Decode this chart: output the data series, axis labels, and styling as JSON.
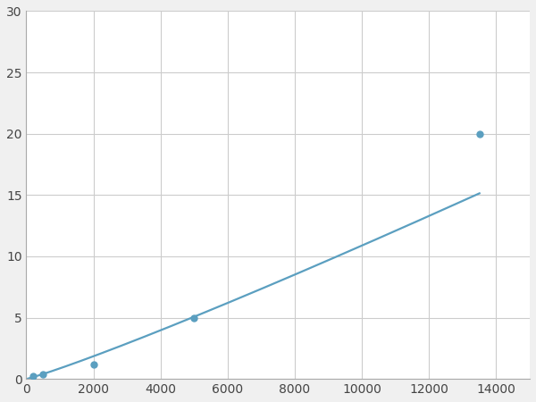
{
  "x_points": [
    200,
    500,
    2000,
    5000,
    13500
  ],
  "y_points": [
    0.2,
    0.35,
    1.2,
    5.0,
    20.0
  ],
  "line_color": "#5b9fc0",
  "marker_color": "#5b9fc0",
  "marker_size": 5,
  "line_width": 1.6,
  "xlim": [
    0,
    15000
  ],
  "ylim": [
    0,
    30
  ],
  "xticks": [
    0,
    2000,
    4000,
    6000,
    8000,
    10000,
    12000,
    14000
  ],
  "yticks": [
    0,
    5,
    10,
    15,
    20,
    25,
    30
  ],
  "grid_color": "#cccccc",
  "plot_bg": "#ffffff",
  "figure_bg": "#f0f0f0"
}
